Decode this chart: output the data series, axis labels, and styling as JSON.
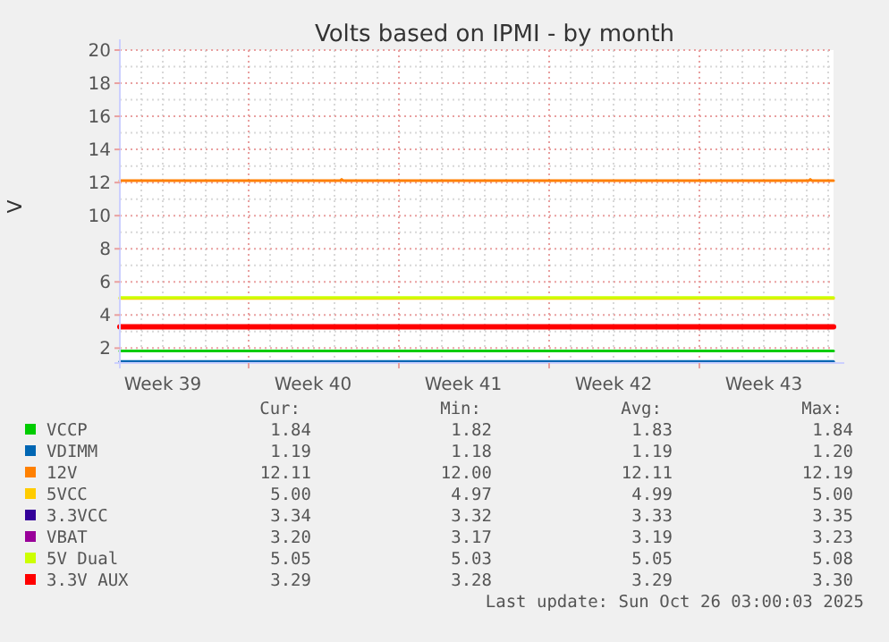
{
  "chart_data": {
    "type": "line",
    "title": "Volts based on IPMI - by month",
    "ylabel": "V",
    "x": [
      "2025-09-23T00:00",
      "2025-10-26T06:00"
    ],
    "xlim": [
      "2025-09-23T00:00",
      "2025-10-26T06:00"
    ],
    "xticks": [
      {
        "value": "2025-09-25T00:00",
        "label": "Week 39"
      },
      {
        "value": "2025-09-29T00:00",
        "label": null
      },
      {
        "value": "2025-10-02T00:00",
        "label": "Week 40"
      },
      {
        "value": "2025-10-06T00:00",
        "label": null
      },
      {
        "value": "2025-10-09T00:00",
        "label": "Week 41"
      },
      {
        "value": "2025-10-13T00:00",
        "label": null
      },
      {
        "value": "2025-10-16T00:00",
        "label": "Week 42"
      },
      {
        "value": "2025-10-20T00:00",
        "label": null
      },
      {
        "value": "2025-10-23T00:00",
        "label": "Week 43"
      }
    ],
    "ylim": [
      1.1,
      20
    ],
    "yticks": [
      2,
      4,
      6,
      8,
      10,
      12,
      14,
      16,
      18,
      20
    ],
    "grid": true,
    "legend": "bottom",
    "marker": "none",
    "line_style": "solid",
    "series": [
      {
        "name": "VCCP",
        "color": "#00cc00",
        "values": [
          1.83,
          1.83
        ]
      },
      {
        "name": "VDIMM",
        "color": "#0066b3",
        "values": [
          1.19,
          1.19
        ]
      },
      {
        "name": "12V",
        "color": "#ff8000",
        "x": [
          "2025-09-23T00:00",
          "2025-10-03T06:00",
          "2025-10-03T08:00",
          "2025-10-03T10:00",
          "2025-10-25T02:00",
          "2025-10-25T04:00",
          "2025-10-25T06:00",
          "2025-10-26T06:00"
        ],
        "values": [
          12.11,
          12.11,
          12.19,
          12.11,
          12.11,
          12.19,
          12.11,
          12.11
        ]
      },
      {
        "name": "5VCC",
        "color": "#ffcc00",
        "values": [
          5.0,
          5.0
        ]
      },
      {
        "name": "3.3VCC",
        "color": "#330099",
        "values": [
          null,
          null
        ]
      },
      {
        "name": "VBAT",
        "color": "#990099",
        "values": [
          null,
          null
        ]
      },
      {
        "name": "5V Dual",
        "color": "#ccff00",
        "values": [
          5.05,
          5.05
        ]
      },
      {
        "name": "3.3V AUX",
        "color": "#ff0000",
        "values": [
          3.29,
          3.29
        ]
      }
    ],
    "annotations": [
      "Cur:",
      "Min:",
      "Avg:",
      "Max:",
      "1.84",
      "1.82",
      "1.83",
      "1.84",
      "1.19",
      "1.18",
      "1.19",
      "1.20",
      "12.11",
      "12.00",
      "12.11",
      "12.19",
      "5.00",
      "4.97",
      "4.99",
      "5.00",
      "3.34",
      "3.32",
      "3.33",
      "3.35",
      "3.20",
      "3.17",
      "3.19",
      "3.23",
      "5.05",
      "5.03",
      "5.05",
      "5.08",
      "3.29",
      "3.28",
      "3.29",
      "3.30",
      "Last update: Sun Oct 26 03:00:03 2025"
    ]
  }
}
